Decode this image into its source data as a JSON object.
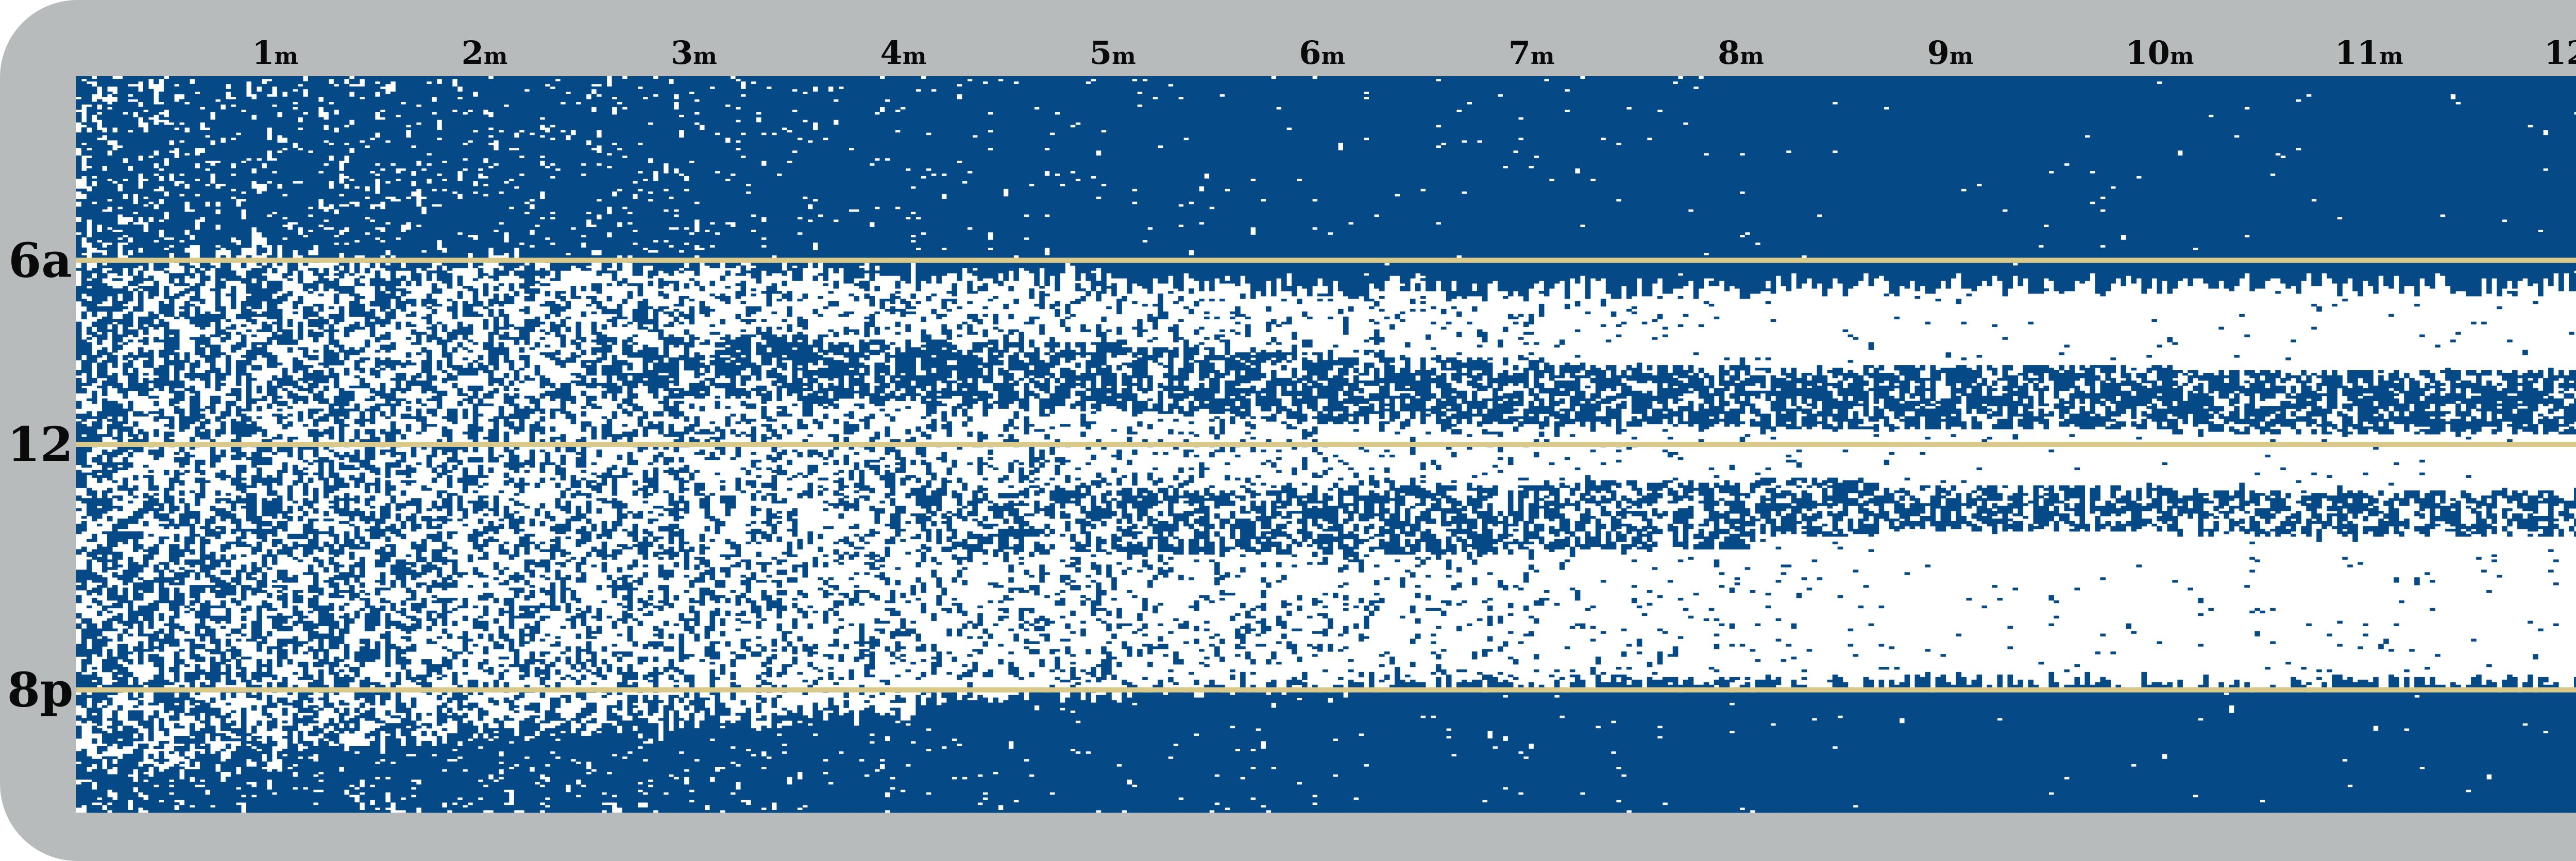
{
  "chart_data": {
    "type": "heatmap",
    "title": "",
    "xlabel": "",
    "ylabel": "",
    "x_ticks": [
      {
        "num": "1",
        "unit": "m",
        "month": 1
      },
      {
        "num": "2",
        "unit": "m",
        "month": 2
      },
      {
        "num": "3",
        "unit": "m",
        "month": 3
      },
      {
        "num": "4",
        "unit": "m",
        "month": 4
      },
      {
        "num": "5",
        "unit": "m",
        "month": 5
      },
      {
        "num": "6",
        "unit": "m",
        "month": 6
      },
      {
        "num": "7",
        "unit": "m",
        "month": 7
      },
      {
        "num": "8",
        "unit": "m",
        "month": 8
      },
      {
        "num": "9",
        "unit": "m",
        "month": 9
      },
      {
        "num": "10",
        "unit": "m",
        "month": 10
      },
      {
        "num": "11",
        "unit": "m",
        "month": 11
      },
      {
        "num": "12",
        "unit": "m",
        "month": 12
      }
    ],
    "y_ticks": [
      {
        "label": "6a",
        "hour": 6
      },
      {
        "label": "12",
        "hour": 12
      },
      {
        "label": "8p",
        "hour": 20
      }
    ],
    "x_range_months": [
      0,
      12.15
    ],
    "y_range_hours": [
      0,
      24
    ],
    "colors": {
      "asleep": "#054a86",
      "awake": "#ffffff",
      "reference_line": "#d9c98a",
      "frame": "#b8bbbb"
    },
    "sleep_periods": [
      {
        "start_month": 0.0,
        "end_month": 0.2,
        "night_end_hour": 5.8,
        "night_start_hour": 22.5,
        "morning_nap": [
          0,
          0
        ],
        "afternoon_nap": [
          0,
          0
        ],
        "sleep_density_day": 0.52,
        "sleep_density_night": 0.72
      },
      {
        "start_month": 0.2,
        "end_month": 0.6,
        "night_end_hour": 5.8,
        "night_start_hour": 22.5,
        "morning_nap": [
          0,
          0
        ],
        "afternoon_nap": [
          0,
          0
        ],
        "sleep_density_day": 0.5,
        "sleep_density_night": 0.76
      },
      {
        "start_month": 0.6,
        "end_month": 1.0,
        "night_end_hour": 5.8,
        "night_start_hour": 22.2,
        "morning_nap": [
          0,
          0
        ],
        "afternoon_nap": [
          0,
          0
        ],
        "sleep_density_day": 0.48,
        "sleep_density_night": 0.79
      },
      {
        "start_month": 1.0,
        "end_month": 1.5,
        "night_end_hour": 5.9,
        "night_start_hour": 21.8,
        "morning_nap": [
          0,
          0
        ],
        "afternoon_nap": [
          0,
          0
        ],
        "sleep_density_day": 0.46,
        "sleep_density_night": 0.82
      },
      {
        "start_month": 1.5,
        "end_month": 2.0,
        "night_end_hour": 6.0,
        "night_start_hour": 21.6,
        "morning_nap": [
          0,
          0
        ],
        "afternoon_nap": [
          0,
          0
        ],
        "sleep_density_day": 0.43,
        "sleep_density_night": 0.85
      },
      {
        "start_month": 2.0,
        "end_month": 2.5,
        "night_end_hour": 6.1,
        "night_start_hour": 21.4,
        "morning_nap": [
          0,
          0
        ],
        "afternoon_nap": [
          0,
          0
        ],
        "sleep_density_day": 0.4,
        "sleep_density_night": 0.87
      },
      {
        "start_month": 2.5,
        "end_month": 3.0,
        "night_end_hour": 6.2,
        "night_start_hour": 21.2,
        "morning_nap": [
          8.5,
          10.5
        ],
        "afternoon_nap": [
          0,
          0
        ],
        "sleep_density_day": 0.36,
        "sleep_density_night": 0.89
      },
      {
        "start_month": 3.0,
        "end_month": 3.5,
        "night_end_hour": 6.3,
        "night_start_hour": 21.0,
        "morning_nap": [
          8.5,
          10.5
        ],
        "afternoon_nap": [
          0,
          0
        ],
        "sleep_density_day": 0.32,
        "sleep_density_night": 0.91
      },
      {
        "start_month": 3.5,
        "end_month": 4.0,
        "night_end_hour": 6.4,
        "night_start_hour": 20.7,
        "morning_nap": [
          8.6,
          10.6
        ],
        "afternoon_nap": [
          0,
          0
        ],
        "sleep_density_day": 0.3,
        "sleep_density_night": 0.93
      },
      {
        "start_month": 4.0,
        "end_month": 4.5,
        "night_end_hour": 6.5,
        "night_start_hour": 20.3,
        "morning_nap": [
          8.7,
          10.8
        ],
        "afternoon_nap": [
          13.5,
          15.5
        ],
        "sleep_density_day": 0.27,
        "sleep_density_night": 0.95
      },
      {
        "start_month": 4.5,
        "end_month": 5.0,
        "night_end_hour": 6.6,
        "night_start_hour": 20.1,
        "morning_nap": [
          8.7,
          10.8
        ],
        "afternoon_nap": [
          13.5,
          15.5
        ],
        "sleep_density_day": 0.25,
        "sleep_density_night": 0.96
      },
      {
        "start_month": 5.0,
        "end_month": 5.5,
        "night_end_hour": 6.7,
        "night_start_hour": 20.0,
        "morning_nap": [
          8.8,
          11.0
        ],
        "afternoon_nap": [
          13.5,
          15.6
        ],
        "sleep_density_day": 0.22,
        "sleep_density_night": 0.97
      },
      {
        "start_month": 5.5,
        "end_month": 6.0,
        "night_end_hour": 6.8,
        "night_start_hour": 19.9,
        "morning_nap": [
          9.0,
          11.2
        ],
        "afternoon_nap": [
          13.4,
          15.6
        ],
        "sleep_density_day": 0.2,
        "sleep_density_night": 0.97
      },
      {
        "start_month": 6.0,
        "end_month": 7.0,
        "night_end_hour": 6.9,
        "night_start_hour": 19.8,
        "morning_nap": [
          9.2,
          11.3
        ],
        "afternoon_nap": [
          13.3,
          15.6
        ],
        "sleep_density_day": 0.16,
        "sleep_density_night": 0.98
      },
      {
        "start_month": 7.0,
        "end_month": 8.0,
        "night_end_hour": 6.9,
        "night_start_hour": 19.8,
        "morning_nap": [
          9.4,
          11.4
        ],
        "afternoon_nap": [
          13.2,
          15.4
        ],
        "sleep_density_day": 0.1,
        "sleep_density_night": 0.98
      },
      {
        "start_month": 8.0,
        "end_month": 8.6,
        "night_end_hour": 6.8,
        "night_start_hour": 19.8,
        "morning_nap": [
          9.5,
          11.5
        ],
        "afternoon_nap": [
          13.1,
          15.0
        ],
        "sleep_density_day": 0.06,
        "sleep_density_night": 0.99
      },
      {
        "start_month": 8.6,
        "end_month": 10.0,
        "night_end_hour": 6.8,
        "night_start_hour": 19.7,
        "morning_nap": [
          9.4,
          11.5
        ],
        "afternoon_nap": [
          13.3,
          14.8
        ],
        "sleep_density_day": 0.03,
        "sleep_density_night": 0.99
      },
      {
        "start_month": 10.0,
        "end_month": 12.15,
        "night_end_hour": 6.8,
        "night_start_hour": 19.8,
        "morning_nap": [
          9.6,
          11.7
        ],
        "afternoon_nap": [
          13.5,
          15.0
        ],
        "sleep_density_day": 0.03,
        "sleep_density_night": 0.99
      }
    ],
    "grid": false,
    "legend": "none"
  }
}
